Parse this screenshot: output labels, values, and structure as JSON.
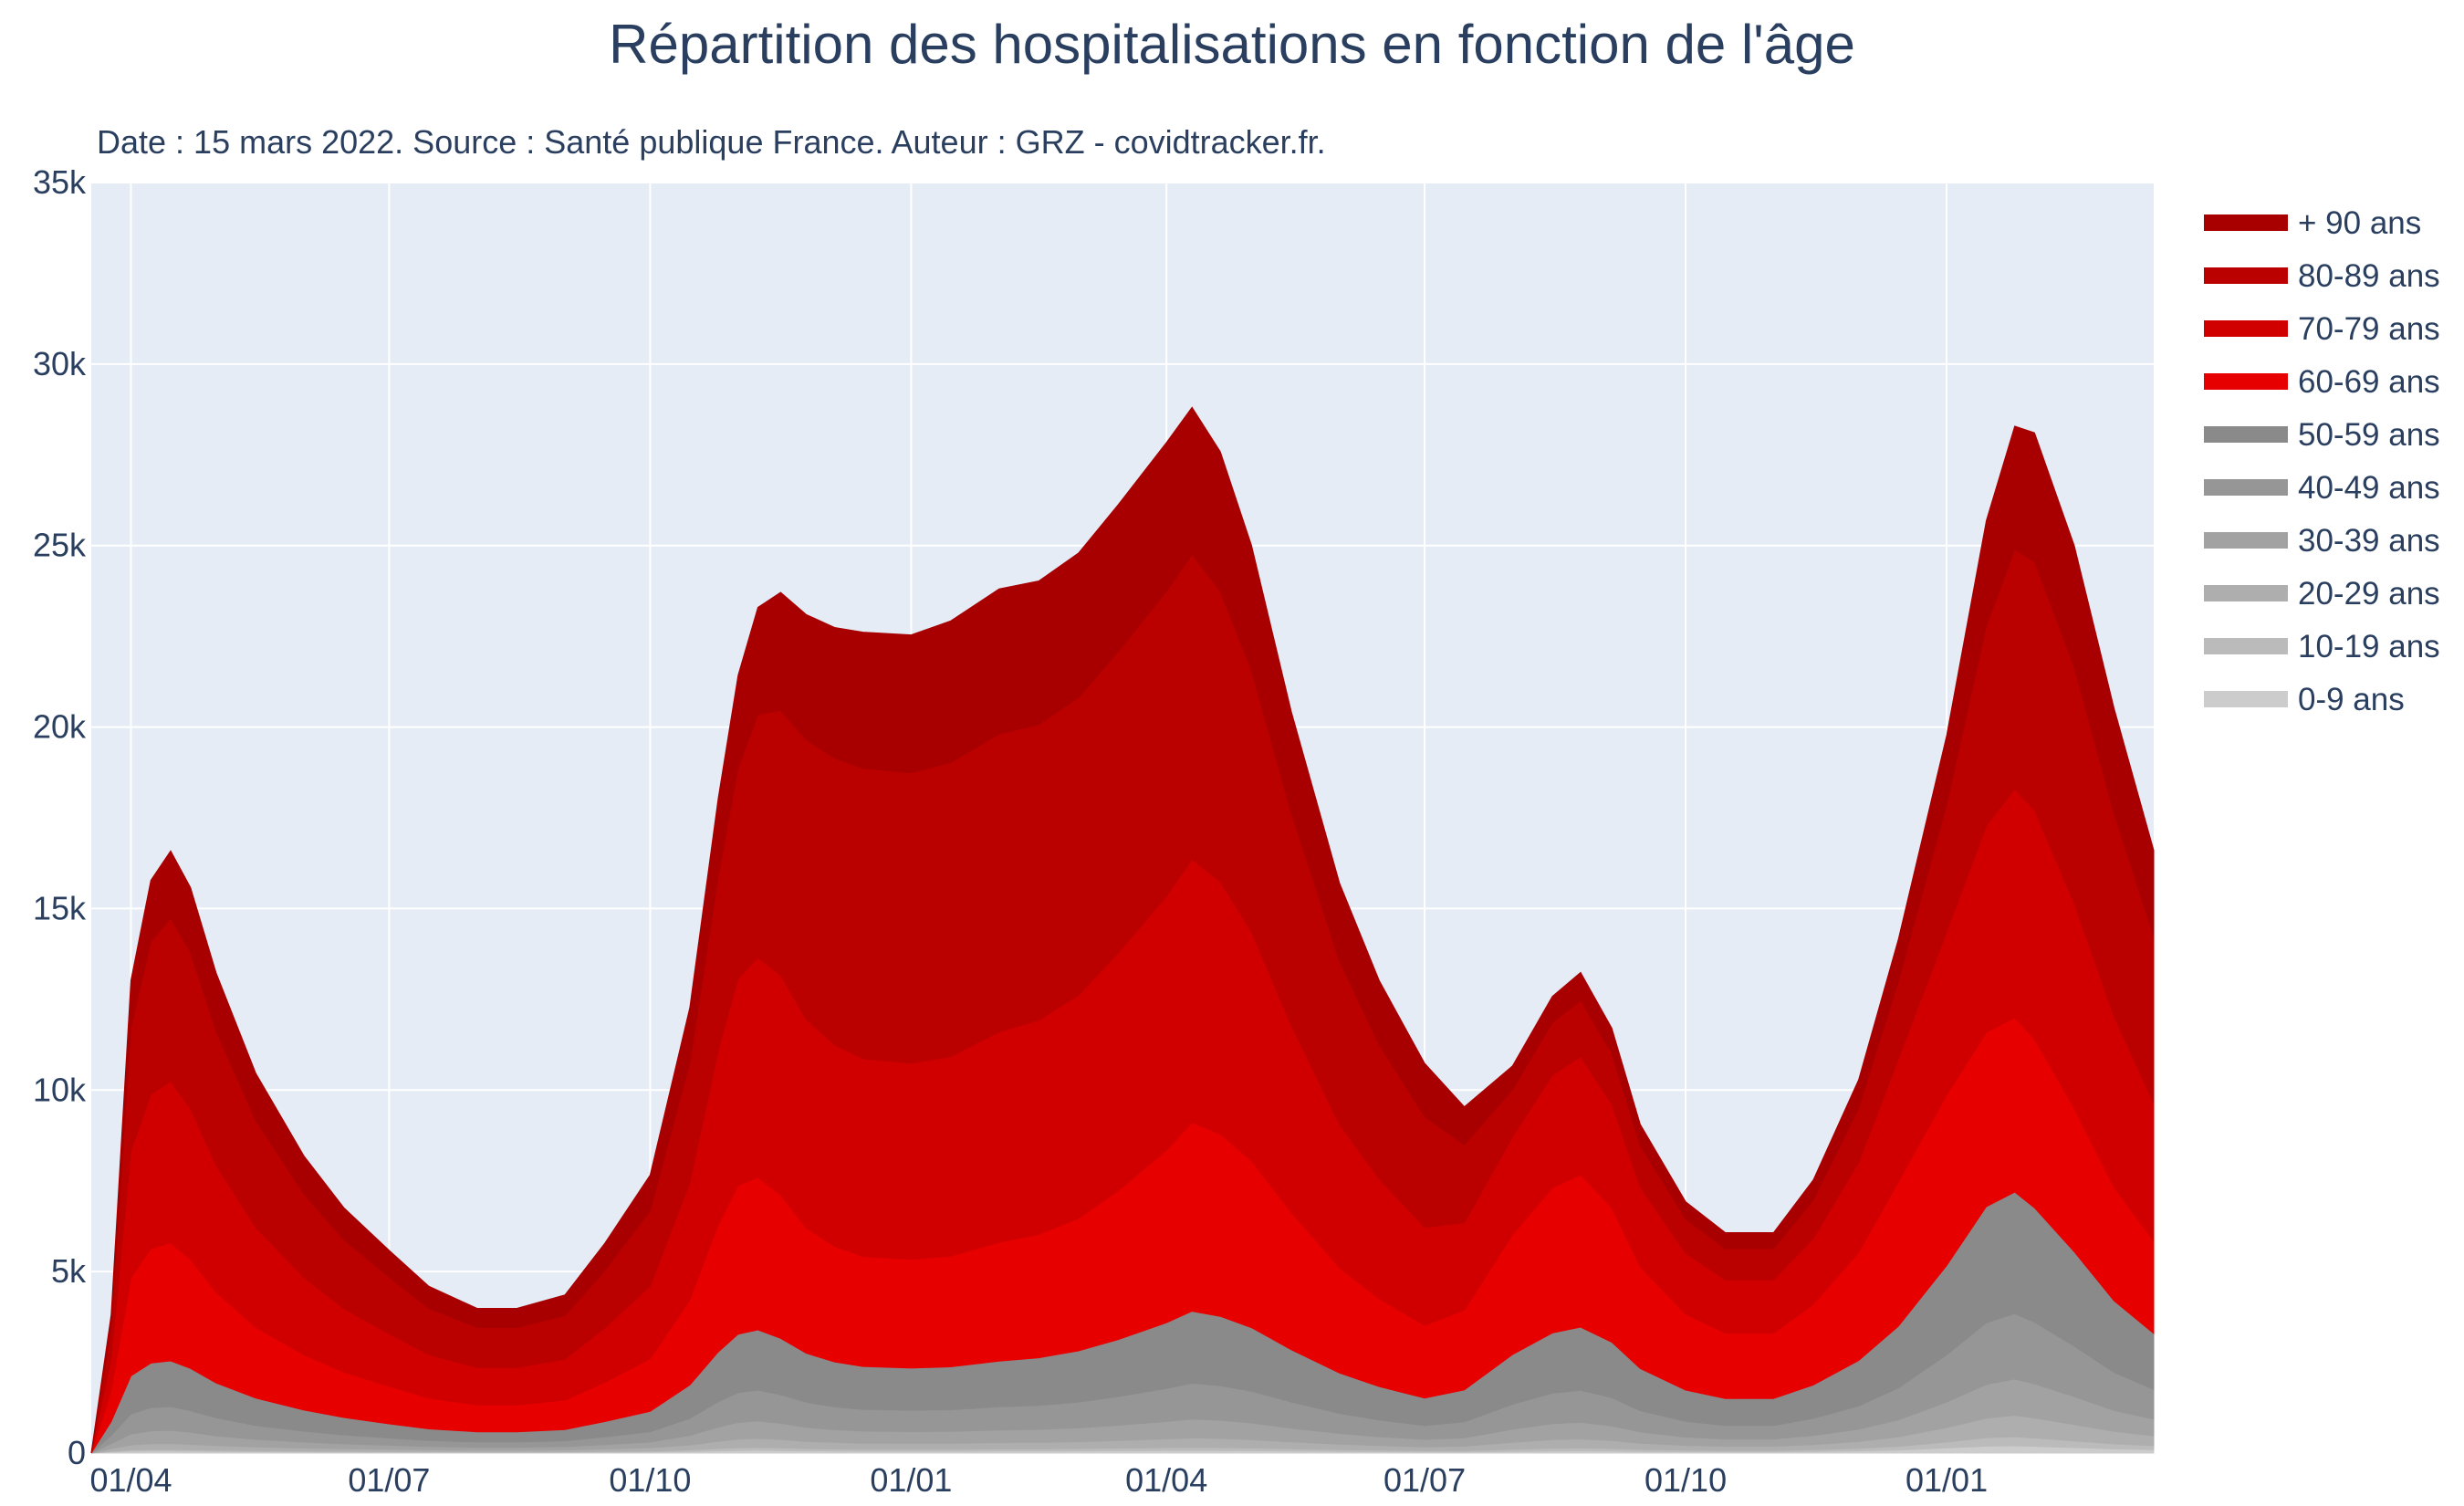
{
  "chart_data": {
    "type": "area",
    "stacked": true,
    "title": "Répartition des hospitalisations en fonction de l'âge",
    "subtitle": "Date : 15 mars 2022. Source : Santé publique France. Auteur : GRZ - covidtracker.fr.",
    "xlabel": "",
    "ylabel": "",
    "ylim": [
      0,
      35000
    ],
    "yticks": [
      0,
      5000,
      10000,
      15000,
      20000,
      25000,
      30000,
      35000
    ],
    "ytick_labels": [
      "0",
      "5k",
      "10k",
      "15k",
      "20k",
      "25k",
      "30k",
      "35k"
    ],
    "xlim": [
      "2020-03-18",
      "2022-03-15"
    ],
    "xticks": [
      "2020-04-01",
      "2020-07-01",
      "2020-10-01",
      "2021-01-01",
      "2021-04-01",
      "2021-07-01",
      "2021-10-01",
      "2022-01-01"
    ],
    "xtick_labels": [
      "01/04",
      "01/07",
      "01/10",
      "01/01",
      "01/04",
      "01/07",
      "01/10",
      "01/01"
    ],
    "grid": true,
    "legend_position": "right",
    "background": "#e5ecf6",
    "x": [
      "2020-03-18",
      "2020-03-25",
      "2020-04-01",
      "2020-04-08",
      "2020-04-15",
      "2020-04-22",
      "2020-05-01",
      "2020-05-15",
      "2020-06-01",
      "2020-06-15",
      "2020-07-01",
      "2020-07-15",
      "2020-08-01",
      "2020-08-15",
      "2020-09-01",
      "2020-09-15",
      "2020-10-01",
      "2020-10-15",
      "2020-10-25",
      "2020-11-01",
      "2020-11-08",
      "2020-11-16",
      "2020-11-25",
      "2020-12-05",
      "2020-12-15",
      "2021-01-01",
      "2021-01-15",
      "2021-02-01",
      "2021-02-15",
      "2021-03-01",
      "2021-03-15",
      "2021-04-01",
      "2021-04-10",
      "2021-04-20",
      "2021-05-01",
      "2021-05-15",
      "2021-06-01",
      "2021-06-15",
      "2021-07-01",
      "2021-07-15",
      "2021-08-01",
      "2021-08-15",
      "2021-08-25",
      "2021-09-05",
      "2021-09-15",
      "2021-10-01",
      "2021-10-15",
      "2021-11-01",
      "2021-11-15",
      "2021-12-01",
      "2021-12-15",
      "2022-01-01",
      "2022-01-15",
      "2022-01-25",
      "2022-02-01",
      "2022-02-15",
      "2022-03-01",
      "2022-03-15"
    ],
    "series": [
      {
        "name": "0-9 ans",
        "color": "#cccccc",
        "values": [
          0,
          30,
          50,
          55,
          55,
          50,
          45,
          38,
          32,
          28,
          25,
          22,
          20,
          20,
          20,
          25,
          30,
          45,
          60,
          70,
          75,
          70,
          60,
          55,
          50,
          50,
          50,
          55,
          55,
          60,
          65,
          70,
          72,
          70,
          65,
          55,
          45,
          38,
          32,
          32,
          45,
          55,
          60,
          55,
          45,
          38,
          35,
          35,
          45,
          60,
          85,
          140,
          190,
          200,
          185,
          150,
          115,
          95
        ]
      },
      {
        "name": "10-19 ans",
        "color": "#bbbbbb",
        "values": [
          0,
          25,
          40,
          45,
          45,
          40,
          35,
          30,
          25,
          22,
          20,
          18,
          16,
          16,
          18,
          22,
          28,
          45,
          65,
          75,
          80,
          75,
          65,
          58,
          55,
          55,
          55,
          60,
          60,
          65,
          72,
          80,
          85,
          82,
          75,
          62,
          50,
          42,
          35,
          38,
          60,
          75,
          80,
          70,
          55,
          42,
          38,
          38,
          50,
          70,
          100,
          165,
          230,
          250,
          230,
          185,
          140,
          110
        ]
      },
      {
        "name": "20-29 ans",
        "color": "#aeaeae",
        "values": [
          0,
          70,
          135,
          160,
          165,
          150,
          125,
          100,
          82,
          70,
          60,
          50,
          45,
          45,
          50,
          65,
          85,
          135,
          200,
          240,
          250,
          230,
          200,
          180,
          170,
          165,
          165,
          175,
          180,
          190,
          210,
          240,
          260,
          250,
          230,
          190,
          150,
          125,
          105,
          120,
          190,
          240,
          250,
          220,
          170,
          130,
          115,
          115,
          140,
          190,
          260,
          400,
          540,
          590,
          550,
          450,
          340,
          270
        ]
      },
      {
        "name": "30-39 ans",
        "color": "#a2a2a2",
        "values": [
          0,
          140,
          300,
          350,
          360,
          330,
          270,
          210,
          165,
          135,
          110,
          92,
          80,
          80,
          90,
          120,
          160,
          260,
          390,
          460,
          480,
          445,
          385,
          350,
          330,
          320,
          325,
          345,
          355,
          380,
          420,
          480,
          520,
          500,
          460,
          380,
          295,
          245,
          205,
          230,
          360,
          440,
          460,
          405,
          310,
          230,
          200,
          200,
          250,
          340,
          470,
          700,
          930,
          1000,
          940,
          770,
          580,
          460
        ]
      },
      {
        "name": "40-49 ans",
        "color": "#969696",
        "values": [
          0,
          220,
          550,
          640,
          655,
          600,
          495,
          385,
          300,
          245,
          200,
          165,
          145,
          145,
          160,
          215,
          285,
          470,
          700,
          820,
          850,
          790,
          690,
          630,
          600,
          590,
          600,
          640,
          665,
          710,
          790,
          910,
          990,
          955,
          875,
          720,
          555,
          460,
          380,
          440,
          690,
          840,
          880,
          775,
          590,
          435,
          375,
          375,
          470,
          640,
          880,
          1300,
          1700,
          1800,
          1700,
          1390,
          1050,
          820
        ]
      },
      {
        "name": "50-59 ans",
        "color": "#8a8a8a",
        "values": [
          0,
          380,
          1050,
          1230,
          1260,
          1160,
          960,
          750,
          580,
          480,
          390,
          320,
          280,
          280,
          310,
          420,
          560,
          920,
          1370,
          1610,
          1660,
          1550,
          1350,
          1240,
          1180,
          1160,
          1180,
          1260,
          1310,
          1410,
          1570,
          1810,
          1980,
          1910,
          1750,
          1440,
          1110,
          920,
          760,
          880,
          1370,
          1660,
          1740,
          1530,
          1160,
          860,
          740,
          740,
          920,
          1250,
          1700,
          2460,
          3200,
          3350,
          3150,
          2600,
          1970,
          1540
        ]
      },
      {
        "name": "60-69 ans",
        "color": "#e60000",
        "values": [
          0,
          850,
          2700,
          3150,
          3250,
          3000,
          2500,
          1950,
          1520,
          1250,
          1030,
          850,
          740,
          740,
          810,
          1080,
          1450,
          2350,
          3500,
          4100,
          4200,
          3950,
          3450,
          3180,
          3030,
          3000,
          3050,
          3270,
          3400,
          3650,
          4100,
          4750,
          5200,
          5020,
          4600,
          3780,
          2900,
          2420,
          2000,
          2200,
          3300,
          4000,
          4200,
          3700,
          2800,
          2090,
          1800,
          1800,
          2220,
          2980,
          3980,
          4700,
          4800,
          4800,
          4650,
          3950,
          3130,
          2540
        ]
      },
      {
        "name": "70-79 ans",
        "color": "#d10000",
        "values": [
          0,
          900,
          3500,
          4250,
          4450,
          4150,
          3500,
          2750,
          2130,
          1750,
          1450,
          1190,
          1030,
          1030,
          1130,
          1500,
          2000,
          3230,
          4800,
          5700,
          6050,
          6050,
          5750,
          5550,
          5450,
          5400,
          5500,
          5800,
          5900,
          6150,
          6550,
          7000,
          7250,
          6950,
          6300,
          5150,
          3950,
          3300,
          2700,
          2400,
          2700,
          3100,
          3250,
          2850,
          2200,
          1680,
          1470,
          1470,
          1820,
          2480,
          3380,
          4500,
          5700,
          6300,
          6300,
          5650,
          4700,
          3800
        ]
      },
      {
        "name": "80-89 ans",
        "color": "#bb0000",
        "values": [
          0,
          850,
          3400,
          4200,
          4500,
          4300,
          3700,
          2950,
          2300,
          1900,
          1560,
          1280,
          1100,
          1100,
          1200,
          1580,
          2080,
          3300,
          4800,
          5800,
          6700,
          7300,
          7700,
          7900,
          8000,
          8000,
          8100,
          8200,
          8150,
          8200,
          8300,
          8400,
          8400,
          8000,
          7200,
          5850,
          4500,
          3700,
          3050,
          2150,
          1300,
          1450,
          1550,
          1400,
          1150,
          940,
          860,
          860,
          1060,
          1500,
          2150,
          3500,
          5500,
          6600,
          6850,
          6500,
          5600,
          4600
        ]
      },
      {
        "name": "+ 90 ans",
        "color": "#a80000",
        "values": [
          0,
          350,
          1300,
          1700,
          1850,
          1800,
          1600,
          1300,
          1050,
          880,
          740,
          610,
          530,
          530,
          570,
          750,
          980,
          1520,
          2150,
          2550,
          2950,
          3250,
          3450,
          3600,
          3750,
          3800,
          3900,
          4000,
          3950,
          3980,
          4050,
          4100,
          4050,
          3850,
          3450,
          2800,
          2150,
          1770,
          1470,
          1050,
          650,
          720,
          770,
          700,
          580,
          480,
          440,
          440,
          550,
          780,
          1150,
          1900,
          2900,
          3400,
          3550,
          3350,
          2900,
          2370
        ]
      }
    ]
  }
}
